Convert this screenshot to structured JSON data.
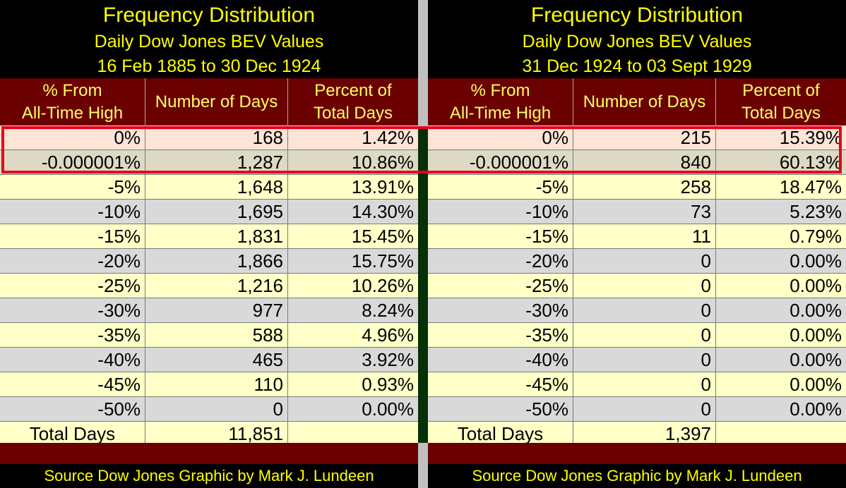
{
  "chart_data": [
    {
      "type": "table",
      "title": "Frequency Distribution",
      "subtitle": "Daily Dow Jones BEV Values",
      "date_range": "16 Feb 1885 to 30 Dec 1924",
      "headers": [
        {
          "line1": "% From",
          "line2": "All-Time High"
        },
        {
          "line1": "Number of Days",
          "line2": ""
        },
        {
          "line1": "Percent of",
          "line2": "Total Days"
        }
      ],
      "rows": [
        [
          "0%",
          "168",
          "1.42%"
        ],
        [
          "-0.000001%",
          "1,287",
          "10.86%"
        ],
        [
          "-5%",
          "1,648",
          "13.91%"
        ],
        [
          "-10%",
          "1,695",
          "14.30%"
        ],
        [
          "-15%",
          "1,831",
          "15.45%"
        ],
        [
          "-20%",
          "1,866",
          "15.75%"
        ],
        [
          "-25%",
          "1,216",
          "10.26%"
        ],
        [
          "-30%",
          "977",
          "8.24%"
        ],
        [
          "-35%",
          "588",
          "4.96%"
        ],
        [
          "-40%",
          "465",
          "3.92%"
        ],
        [
          "-45%",
          "110",
          "0.93%"
        ],
        [
          "-50%",
          "0",
          "0.00%"
        ]
      ],
      "total_label": "Total Days",
      "total_value": "11,851",
      "source": "Source Dow Jones   Graphic by Mark J. Lundeen"
    },
    {
      "type": "table",
      "title": "Frequency Distribution",
      "subtitle": "Daily Dow Jones BEV Values",
      "date_range": "31 Dec 1924 to 03 Sept 1929",
      "headers": [
        {
          "line1": "% From",
          "line2": "All-Time High"
        },
        {
          "line1": "Number of Days",
          "line2": ""
        },
        {
          "line1": "Percent of",
          "line2": "Total Days"
        }
      ],
      "rows": [
        [
          "0%",
          "215",
          "15.39%"
        ],
        [
          "-0.000001%",
          "840",
          "60.13%"
        ],
        [
          "-5%",
          "258",
          "18.47%"
        ],
        [
          "-10%",
          "73",
          "5.23%"
        ],
        [
          "-15%",
          "11",
          "0.79%"
        ],
        [
          "-20%",
          "0",
          "0.00%"
        ],
        [
          "-25%",
          "0",
          "0.00%"
        ],
        [
          "-30%",
          "0",
          "0.00%"
        ],
        [
          "-35%",
          "0",
          "0.00%"
        ],
        [
          "-40%",
          "0",
          "0.00%"
        ],
        [
          "-45%",
          "0",
          "0.00%"
        ],
        [
          "-50%",
          "0",
          "0.00%"
        ]
      ],
      "total_label": "Total Days",
      "total_value": "1,397",
      "source": "Source Dow Jones   Graphic by Mark J. Lundeen"
    }
  ],
  "colors": {
    "title_text": "#ffff00",
    "header_bg": "#6b0000",
    "header_text": "#ffff66",
    "row_yellow": "#ffffc8",
    "row_grey": "#d9d9d9",
    "highlight_border": "#e8001a"
  },
  "highlighted_rows": [
    0,
    1
  ]
}
